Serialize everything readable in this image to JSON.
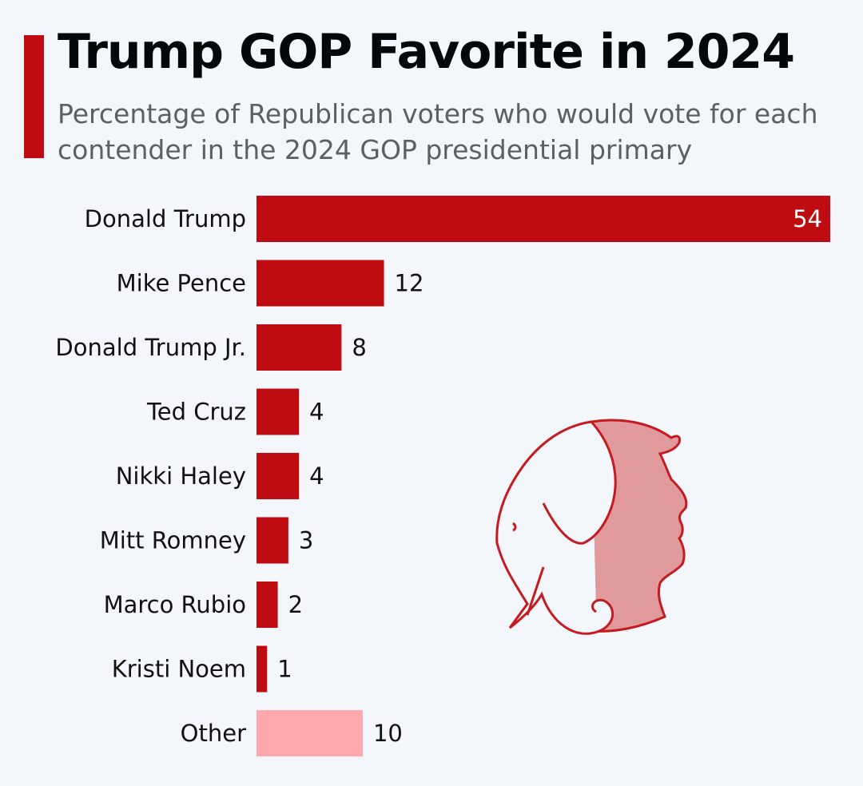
{
  "header": {
    "title": "Trump GOP Favorite in 2024",
    "subtitle": "Percentage of Republican voters who would vote for each contender in the 2024 GOP presidential primary"
  },
  "colors": {
    "accent": "#be0c12",
    "bar": "#be0c12",
    "bar_other": "#ffa8ad",
    "illustration_fill": "#e09a9c"
  },
  "illustration": {
    "icon": "elephant-trump-silhouette-icon"
  },
  "chart_data": {
    "type": "bar",
    "orientation": "horizontal",
    "title": "Trump GOP Favorite in 2024",
    "subtitle": "Percentage of Republican voters who would vote for each contender in the 2024 GOP presidential primary",
    "xlabel": "",
    "ylabel": "",
    "xlim": [
      0,
      54
    ],
    "grid": false,
    "categories": [
      "Donald Trump",
      "Mike Pence",
      "Donald Trump Jr.",
      "Ted Cruz",
      "Nikki Haley",
      "Mitt Romney",
      "Marco Rubio",
      "Kristi Noem",
      "Other"
    ],
    "values": [
      54,
      12,
      8,
      4,
      4,
      3,
      2,
      1,
      10
    ],
    "highlight": [
      "primary",
      "primary",
      "primary",
      "primary",
      "primary",
      "primary",
      "primary",
      "primary",
      "secondary"
    ]
  }
}
